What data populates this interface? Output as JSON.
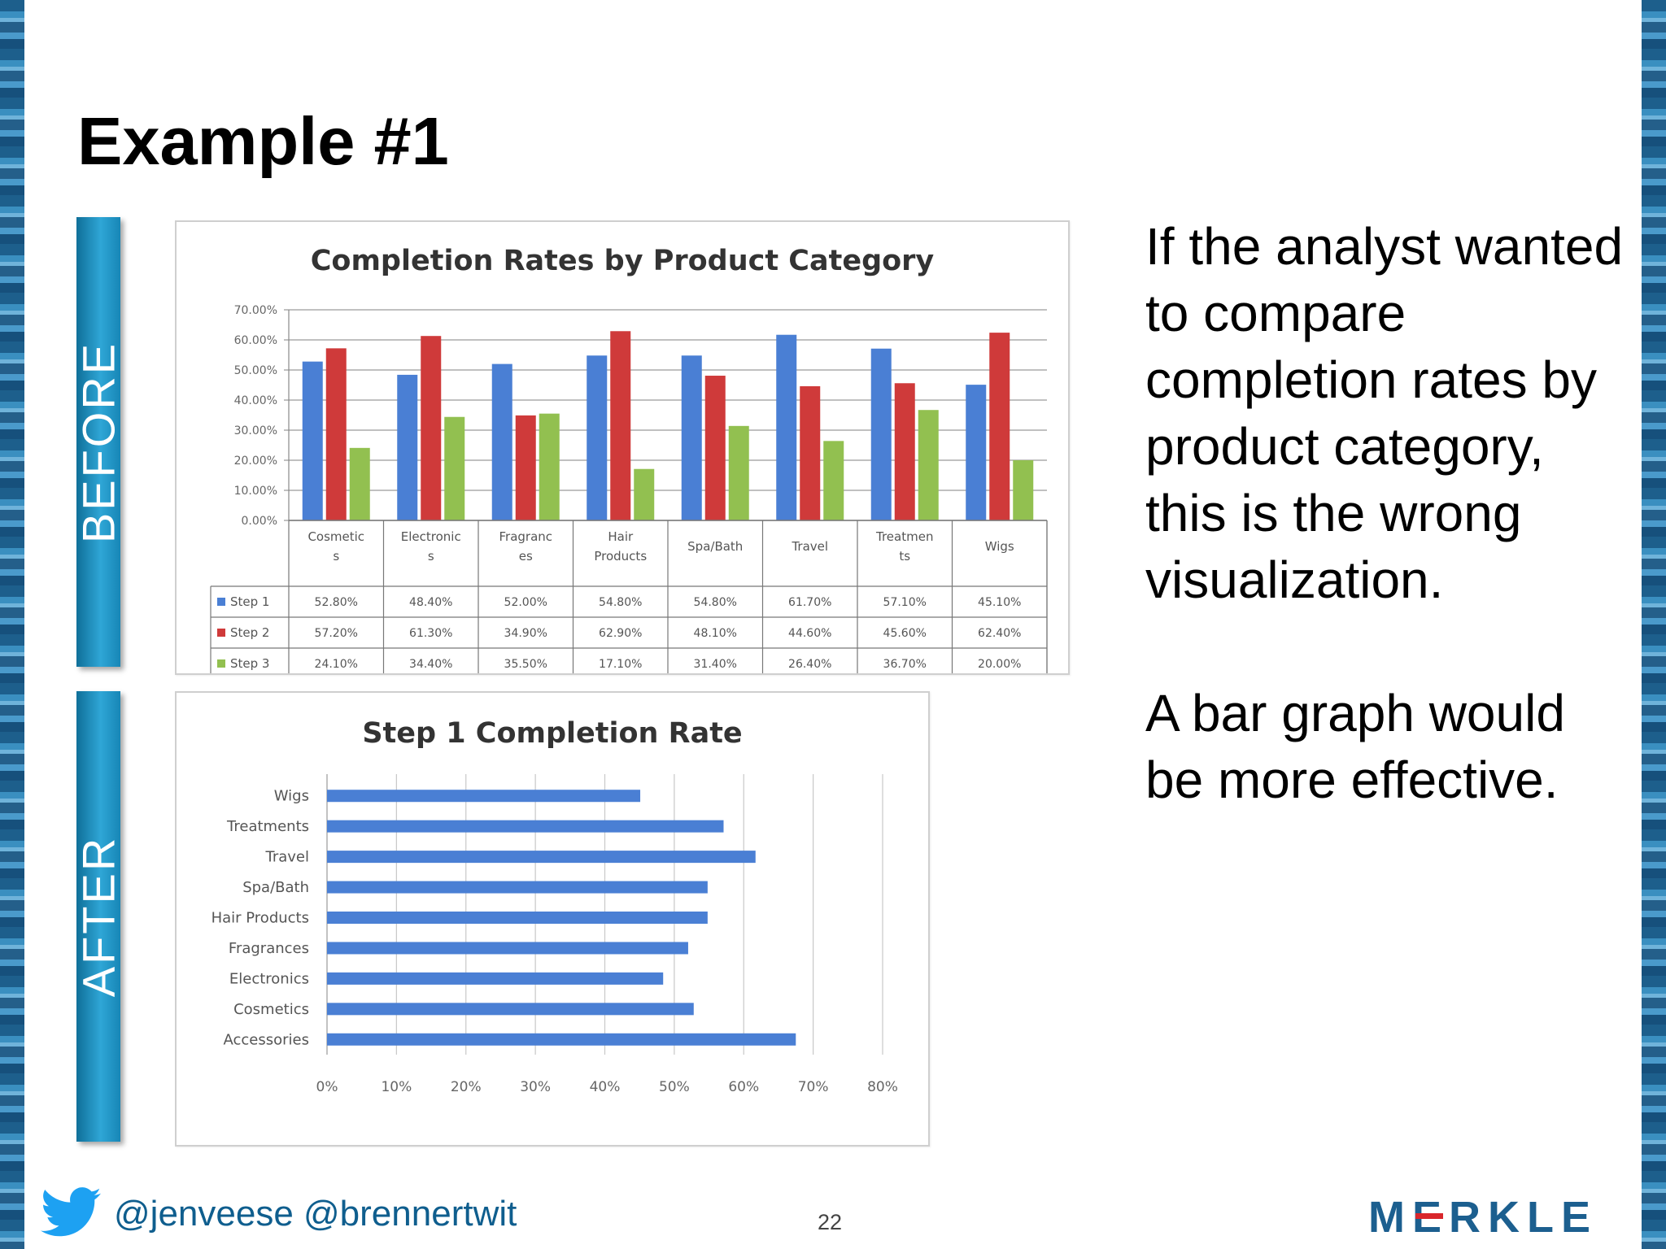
{
  "slide": {
    "title": "Example #1",
    "before_label": "BEFORE",
    "after_label": "AFTER",
    "body_paragraphs": [
      "If the analyst wanted to compare completion rates by product category, this is the wrong visualization.",
      "A bar graph would be more effective."
    ],
    "footer_handles": "@jenveese @brennertwit",
    "page_number": "22",
    "logo_text": "MERKLE",
    "colors": {
      "series1": "#4a7fd4",
      "series2": "#cf3a3a",
      "series3": "#92c050",
      "accent": "#1c8fc0",
      "logo": "#1c5f8f"
    },
    "icons": [
      "twitter-bird-icon"
    ]
  },
  "chart_data": [
    {
      "type": "bar",
      "title": "Completion Rates by Product Category",
      "categories": [
        "Cosmetic s",
        "Electronic s",
        "Fragranc es",
        "Hair Products",
        "Spa/Bath",
        "Travel",
        "Treatmen ts",
        "Wigs"
      ],
      "series": [
        {
          "name": "Step 1",
          "values": [
            52.8,
            48.4,
            52.0,
            54.8,
            54.8,
            61.7,
            57.1,
            45.1
          ]
        },
        {
          "name": "Step 2",
          "values": [
            57.2,
            61.3,
            34.9,
            62.9,
            48.1,
            44.6,
            45.6,
            62.4
          ]
        },
        {
          "name": "Step 3",
          "values": [
            24.1,
            34.4,
            35.5,
            17.1,
            31.4,
            26.4,
            36.7,
            20.0
          ]
        }
      ],
      "table_cells": [
        [
          "52.80%",
          "48.40%",
          "52.00%",
          "54.80%",
          "54.80%",
          "61.70%",
          "57.10%",
          "45.10%"
        ],
        [
          "57.20%",
          "61.30%",
          "34.90%",
          "62.90%",
          "48.10%",
          "44.60%",
          "45.60%",
          "62.40%"
        ],
        [
          "24.10%",
          "34.40%",
          "35.50%",
          "17.10%",
          "31.40%",
          "26.40%",
          "36.70%",
          "20.00%"
        ]
      ],
      "ylim": [
        0,
        70
      ],
      "y_ticks": [
        "0.00%",
        "10.00%",
        "20.00%",
        "30.00%",
        "40.00%",
        "50.00%",
        "60.00%",
        "70.00%"
      ],
      "grid": true,
      "legend": "data-table"
    },
    {
      "type": "bar",
      "orientation": "horizontal",
      "title": "Step 1 Completion Rate",
      "categories": [
        "Wigs",
        "Treatments",
        "Travel",
        "Spa/Bath",
        "Hair Products",
        "Fragrances",
        "Electronics",
        "Cosmetics",
        "Accessories"
      ],
      "values": [
        45.1,
        57.1,
        61.7,
        54.8,
        54.8,
        52.0,
        48.4,
        52.8,
        67.5
      ],
      "xlim": [
        0,
        80
      ],
      "x_ticks": [
        "0%",
        "10%",
        "20%",
        "30%",
        "40%",
        "50%",
        "60%",
        "70%",
        "80%"
      ],
      "grid": true
    }
  ]
}
